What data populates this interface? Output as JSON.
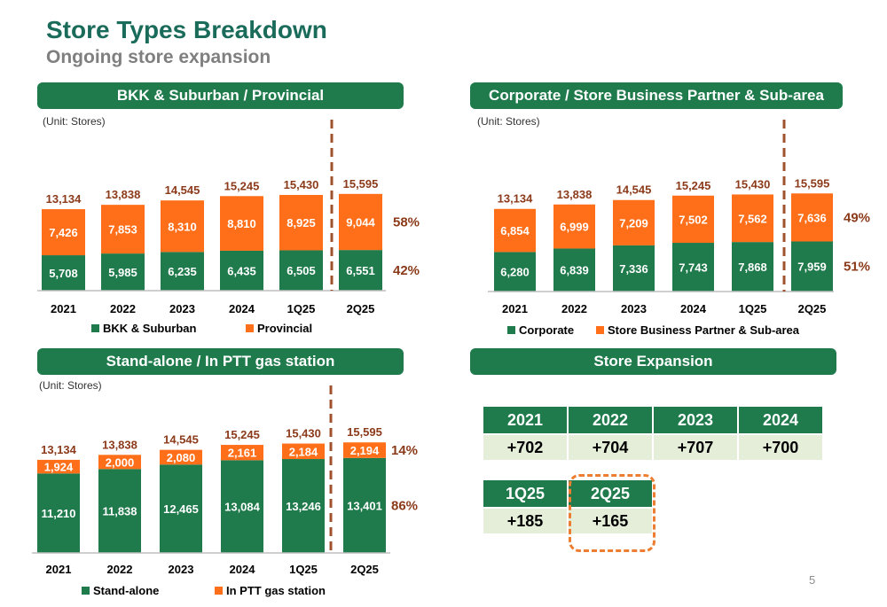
{
  "page": {
    "title": "Store Types Breakdown",
    "subtitle": "Ongoing store expansion",
    "page_number": "5"
  },
  "colors": {
    "green": "#1f7a4c",
    "orange": "#ff6f1a",
    "total_label": "#8b3a1a",
    "pct_label": "#8b3a1a",
    "divider": "#a0522d"
  },
  "chart_data": [
    {
      "type": "bar",
      "stacked": true,
      "title": "BKK & Suburban / Provincial",
      "unit_note": "(Unit:  Stores)",
      "categories": [
        "2021",
        "2022",
        "2023",
        "2024",
        "1Q25",
        "2Q25"
      ],
      "series": [
        {
          "name": "BKK & Suburban",
          "color": "#1f7a4c",
          "values": [
            5708,
            5985,
            6235,
            6435,
            6505,
            6551
          ],
          "labels": [
            "5,708",
            "5,985",
            "6,235",
            "6,435",
            "6,505",
            "6,551"
          ]
        },
        {
          "name": "Provincial",
          "color": "#ff6f1a",
          "values": [
            7426,
            7853,
            8310,
            8810,
            8925,
            9044
          ],
          "labels": [
            "7,426",
            "7,853",
            "8,310",
            "8,810",
            "8,925",
            "9,044"
          ]
        }
      ],
      "totals": [
        "13,134",
        "13,838",
        "14,545",
        "15,245",
        "15,430",
        "15,595"
      ],
      "share_labels": {
        "top": "58%",
        "bottom": "42%"
      },
      "divider_after_index": 4,
      "ylim": [
        0,
        16000
      ]
    },
    {
      "type": "bar",
      "stacked": true,
      "title": "Corporate / Store Business Partner & Sub-area",
      "unit_note": "(Unit:  Stores)",
      "categories": [
        "2021",
        "2022",
        "2023",
        "2024",
        "1Q25",
        "2Q25"
      ],
      "series": [
        {
          "name": "Corporate",
          "color": "#1f7a4c",
          "values": [
            6280,
            6839,
            7336,
            7743,
            7868,
            7959
          ],
          "labels": [
            "6,280",
            "6,839",
            "7,336",
            "7,743",
            "7,868",
            "7,959"
          ]
        },
        {
          "name": "Store Business Partner & Sub-area",
          "color": "#ff6f1a",
          "values": [
            6854,
            6999,
            7209,
            7502,
            7562,
            7636
          ],
          "labels": [
            "6,854",
            "6,999",
            "7,209",
            "7,502",
            "7,562",
            "7,636"
          ]
        }
      ],
      "totals": [
        "13,134",
        "13,838",
        "14,545",
        "15,245",
        "15,430",
        "15,595"
      ],
      "share_labels": {
        "top": "49%",
        "bottom": "51%"
      },
      "divider_after_index": 4,
      "ylim": [
        0,
        16000
      ]
    },
    {
      "type": "bar",
      "stacked": true,
      "title": "Stand-alone / In PTT gas station",
      "unit_note": "(Unit:  Stores)",
      "categories": [
        "2021",
        "2022",
        "2023",
        "2024",
        "1Q25",
        "2Q25"
      ],
      "series": [
        {
          "name": "Stand-alone",
          "color": "#1f7a4c",
          "values": [
            11210,
            11838,
            12465,
            13084,
            13246,
            13401
          ],
          "labels": [
            "11,210",
            "11,838",
            "12,465",
            "13,084",
            "13,246",
            "13,401"
          ]
        },
        {
          "name": "In PTT gas station",
          "color": "#ff6f1a",
          "values": [
            1924,
            2000,
            2080,
            2161,
            2184,
            2194
          ],
          "labels": [
            "1,924",
            "2,000",
            "2,080",
            "2,161",
            "2,184",
            "2,194"
          ]
        }
      ],
      "totals": [
        "13,134",
        "13,838",
        "14,545",
        "15,245",
        "15,430",
        "15,595"
      ],
      "share_labels": {
        "top": "14%",
        "bottom": "86%"
      },
      "divider_after_index": 4,
      "ylim": [
        0,
        16000
      ]
    },
    {
      "type": "table",
      "title": "Store Expansion",
      "annual": {
        "headers": [
          "2021",
          "2022",
          "2023",
          "2024"
        ],
        "values": [
          "+702",
          "+704",
          "+707",
          "+700"
        ]
      },
      "quarterly": {
        "headers": [
          "1Q25",
          "2Q25"
        ],
        "values": [
          "+185",
          "+165"
        ],
        "highlighted": "2Q25"
      }
    }
  ]
}
